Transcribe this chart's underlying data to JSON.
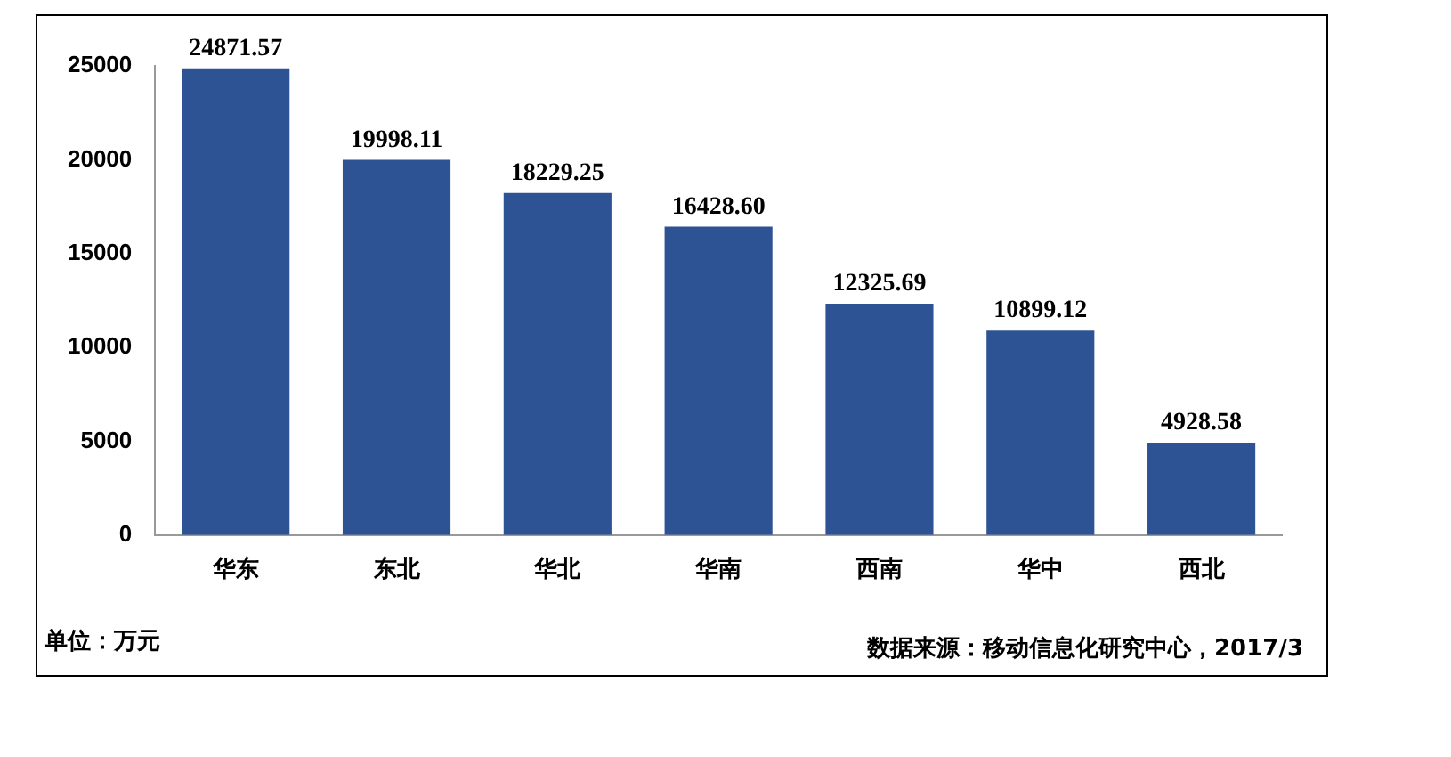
{
  "chart_data": {
    "type": "bar",
    "categories": [
      "华东",
      "东北",
      "华北",
      "华南",
      "西南",
      "华中",
      "西北"
    ],
    "values": [
      24871.57,
      19998.11,
      18229.25,
      16428.6,
      12325.69,
      10899.12,
      4928.58
    ],
    "value_labels": [
      "24871.57",
      "19998.11",
      "18229.25",
      "16428.60",
      "12325.69",
      "10899.12",
      "4928.58"
    ],
    "color": "#2e5395",
    "ylim": [
      0,
      25000
    ],
    "yticks": [
      0,
      5000,
      10000,
      15000,
      20000,
      25000
    ],
    "grid": false,
    "legend": false,
    "annotations": [
      "单位：万元",
      "数据来源：移动信息化研究中心，2017/3"
    ]
  }
}
